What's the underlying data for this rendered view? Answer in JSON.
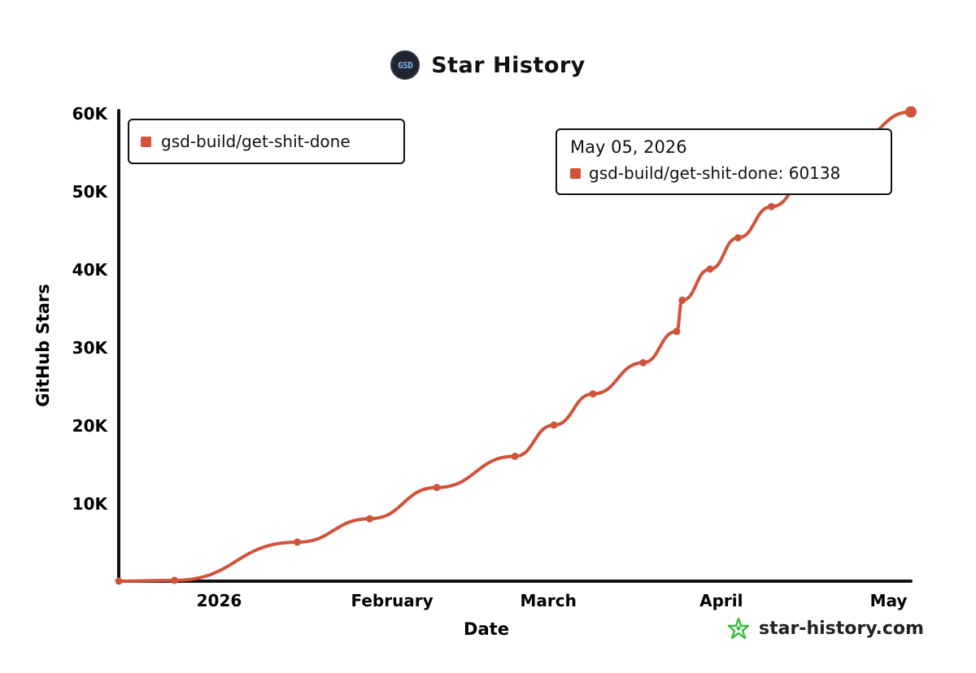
{
  "header": {
    "logo_text": "GSD",
    "title": "Star History"
  },
  "legend": {
    "label": "gsd-build/get-shit-done"
  },
  "tooltip": {
    "date": "May 05, 2026",
    "label": "gsd-build/get-shit-done: 60138"
  },
  "footer": {
    "text": "star-history.com",
    "icon": "star-history-logo-icon"
  },
  "colors": {
    "series": "#d0533a",
    "axis": "#111111",
    "footer_icon": "#3cba3c"
  },
  "chart_data": {
    "type": "line",
    "title": "Star History",
    "xlabel": "Date",
    "ylabel": "GitHub Stars",
    "x_ticks": [
      {
        "label": "2026",
        "date": "2026-01-01"
      },
      {
        "label": "February",
        "date": "2026-02-01"
      },
      {
        "label": "March",
        "date": "2026-03-01"
      },
      {
        "label": "April",
        "date": "2026-04-01"
      },
      {
        "label": "May",
        "date": "2026-05-01"
      }
    ],
    "y_ticks": [
      {
        "label": "10K",
        "value": 10000
      },
      {
        "label": "20K",
        "value": 20000
      },
      {
        "label": "30K",
        "value": 30000
      },
      {
        "label": "40K",
        "value": 40000
      },
      {
        "label": "50K",
        "value": 50000
      },
      {
        "label": "60K",
        "value": 60000
      }
    ],
    "ylim": [
      0,
      60000
    ],
    "xlim": [
      "2025-12-14",
      "2026-05-05"
    ],
    "grid": false,
    "legend_position": "top-left",
    "series": [
      {
        "name": "gsd-build/get-shit-done",
        "points": [
          {
            "date": "2025-12-14",
            "value": 0
          },
          {
            "date": "2025-12-24",
            "value": 100
          },
          {
            "date": "2026-01-15",
            "value": 5000
          },
          {
            "date": "2026-01-28",
            "value": 8000
          },
          {
            "date": "2026-02-09",
            "value": 12000
          },
          {
            "date": "2026-02-23",
            "value": 16000
          },
          {
            "date": "2026-03-02",
            "value": 20000
          },
          {
            "date": "2026-03-09",
            "value": 24000
          },
          {
            "date": "2026-03-18",
            "value": 28000
          },
          {
            "date": "2026-03-24",
            "value": 32000
          },
          {
            "date": "2026-03-25",
            "value": 36000
          },
          {
            "date": "2026-03-30",
            "value": 40000
          },
          {
            "date": "2026-04-04",
            "value": 44000
          },
          {
            "date": "2026-04-10",
            "value": 48000
          },
          {
            "date": "2026-04-17",
            "value": 52000
          },
          {
            "date": "2026-04-24",
            "value": 56000
          },
          {
            "date": "2026-05-05",
            "value": 60138
          }
        ]
      }
    ]
  }
}
